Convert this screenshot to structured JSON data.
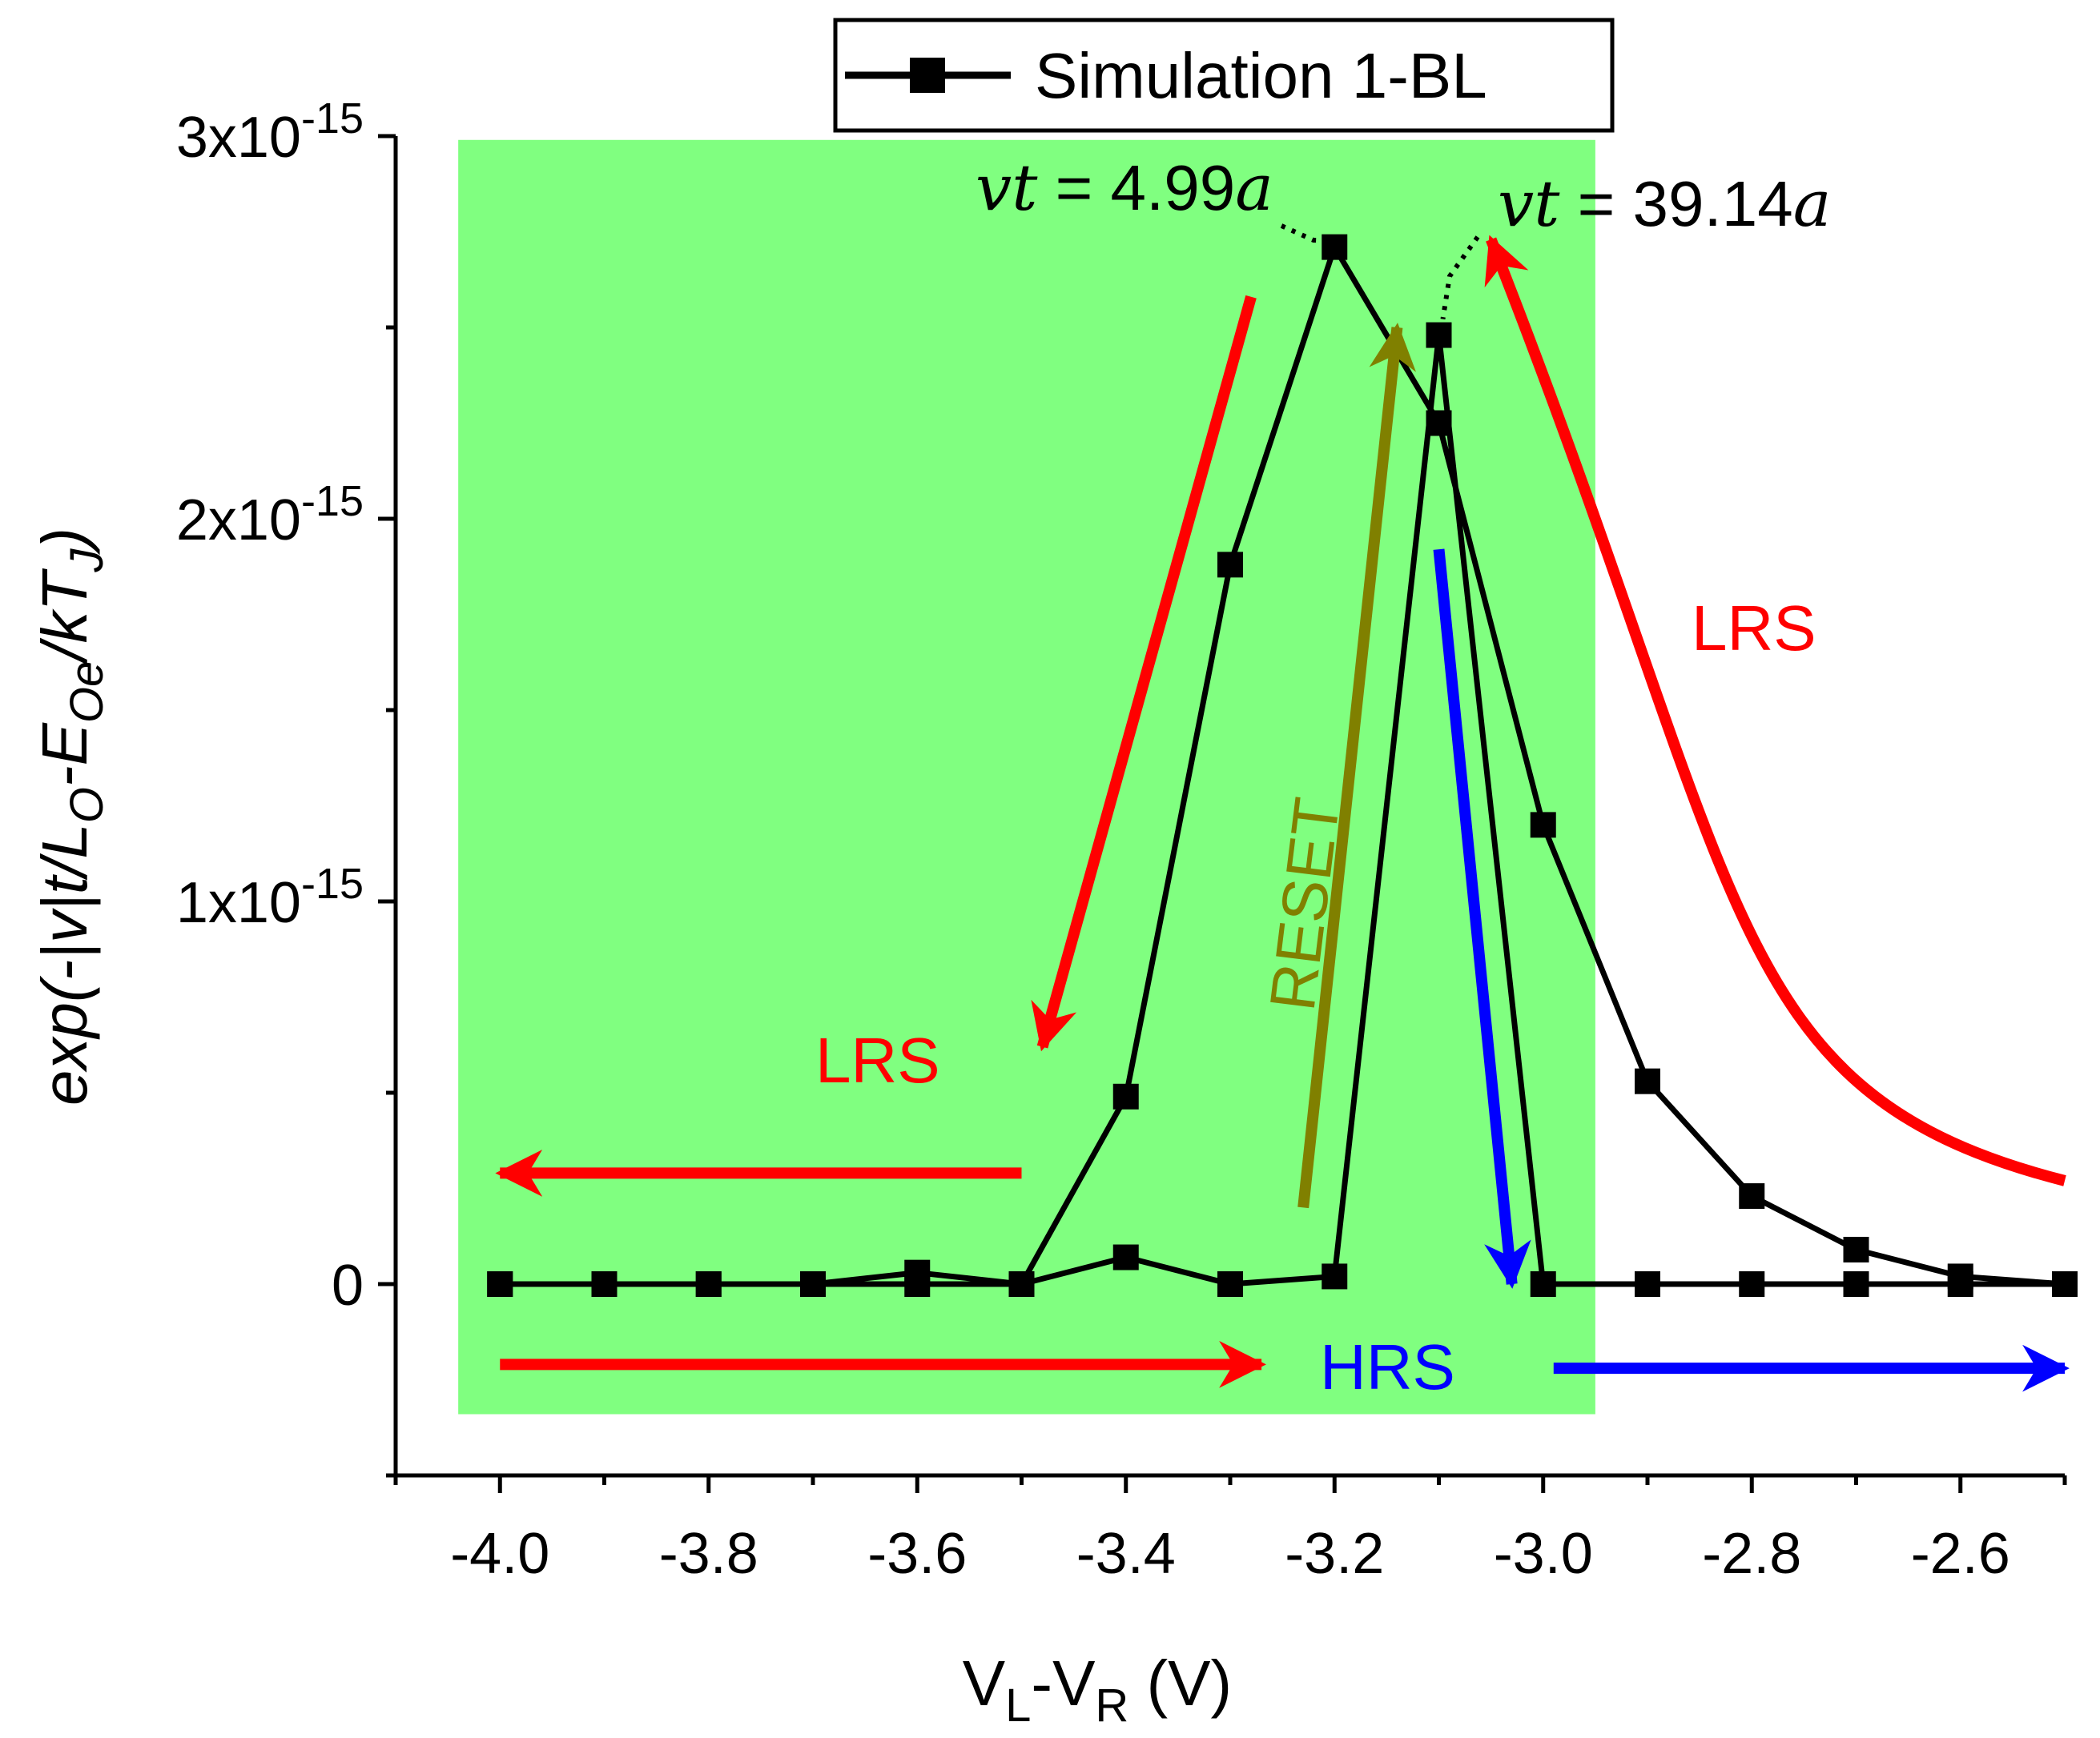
{
  "chart_data": {
    "type": "line",
    "title": "",
    "xlabel_parts": {
      "main": "V",
      "sub1": "L",
      "dash": "-V",
      "sub2": "R",
      "unit": " (V)"
    },
    "ylabel_parts": {
      "p1": "exp(-|v|t/L",
      "s1": "O",
      "p2": "-E",
      "s2": "Oe",
      "p3": "/kT",
      "s3": "J",
      "p4": ")"
    },
    "xlim": [
      -4.1,
      -2.5
    ],
    "ylim": [
      -5e-16,
      3e-15
    ],
    "x_ticks": [
      -4.0,
      -3.8,
      -3.6,
      -3.4,
      -3.2,
      -3.0,
      -2.8,
      -2.6
    ],
    "x_tick_labels": [
      "-4.0",
      "-3.8",
      "-3.6",
      "-3.4",
      "-3.2",
      "-3.0",
      "-2.8",
      "-2.6"
    ],
    "y_ticks": [
      0,
      1e-15,
      2e-15,
      3e-15
    ],
    "y_tick_labels": [
      {
        "base": "0",
        "exp": ""
      },
      {
        "base": "1x10",
        "exp": "-15"
      },
      {
        "base": "2x10",
        "exp": "-15"
      },
      {
        "base": "3x10",
        "exp": "-15"
      }
    ],
    "y_minor_ticks": [
      -5e-16,
      5e-16,
      1.5e-15,
      2.5e-15
    ],
    "legend": {
      "label": "Simulation 1-BL",
      "position": "top-center"
    },
    "series": [
      {
        "name": "Simulation 1-BL",
        "color": "#000000",
        "marker": "square",
        "x": [
          -4.0,
          -3.9,
          -3.8,
          -3.7,
          -3.6,
          -3.5,
          -3.4,
          -3.3,
          -3.2,
          -3.1,
          -3.0,
          -2.9,
          -2.8,
          -2.7,
          -2.6,
          -2.5,
          -2.5,
          -2.6,
          -2.7,
          -2.8,
          -2.9,
          -3.0,
          -3.1,
          -3.2,
          -3.3,
          -3.4,
          -3.5,
          -3.6,
          -3.7,
          -3.8,
          -3.9,
          -4.0
        ],
        "y": [
          0,
          0,
          0,
          0,
          3e-17,
          0,
          7e-17,
          0,
          2e-17,
          2.48e-15,
          0,
          0,
          0,
          0,
          0,
          0,
          0,
          2e-17,
          9e-17,
          2.3e-16,
          5.3e-16,
          1.2e-15,
          2.25e-15,
          2.71e-15,
          1.88e-15,
          4.9e-16,
          0,
          0,
          0,
          0,
          0,
          0
        ]
      }
    ],
    "annotations": {
      "vt1": {
        "prefix": "vt",
        "value": " = 4.99",
        "suffix": "a",
        "x": -3.2,
        "y": 2.71e-15
      },
      "vt2": {
        "prefix": "vt",
        "value": " = 39.14",
        "suffix": "a",
        "x": -3.1,
        "y": 2.48e-15
      },
      "lrs_right": "LRS",
      "lrs_left": "LRS",
      "reset": "RESET",
      "hrs": "HRS"
    },
    "region": {
      "x_from": -4.04,
      "x_to": -2.95,
      "y_from": -3.4e-16,
      "y_to": 2.99e-15,
      "color": "#80ff80"
    },
    "colors": {
      "lrs": "#ff0000",
      "reset": "#808000",
      "hrs": "#0000ff",
      "region": "#80ff80"
    }
  }
}
